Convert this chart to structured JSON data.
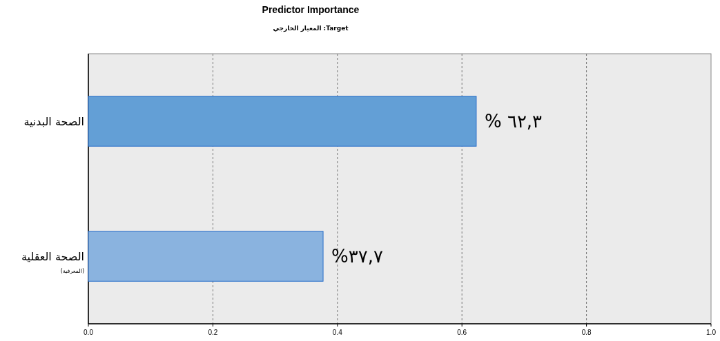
{
  "chart_data": {
    "type": "bar",
    "orientation": "horizontal",
    "title": "Predictor Importance",
    "subtitle": "Target: المعيار الخارجي",
    "categories": [
      "الصحة البدنية",
      "الصحة العقلية"
    ],
    "values": [
      0.623,
      0.377
    ],
    "colors": [
      "#639fd6",
      "#8ab3df"
    ],
    "value_labels": [
      "٦٢,٣ %",
      "٣٧,٧%"
    ],
    "annotations": [
      "(المعرفية)"
    ],
    "xlim": [
      0,
      1
    ],
    "xticks": [
      {
        "value": 0,
        "label": "0.0"
      },
      {
        "value": 0.2,
        "label": "0.2"
      },
      {
        "value": 0.4,
        "label": "0.4"
      },
      {
        "value": 0.6,
        "label": "0.6"
      },
      {
        "value": 0.8,
        "label": "0.8"
      },
      {
        "value": 1,
        "label": "1.0"
      }
    ],
    "grid": "x"
  }
}
